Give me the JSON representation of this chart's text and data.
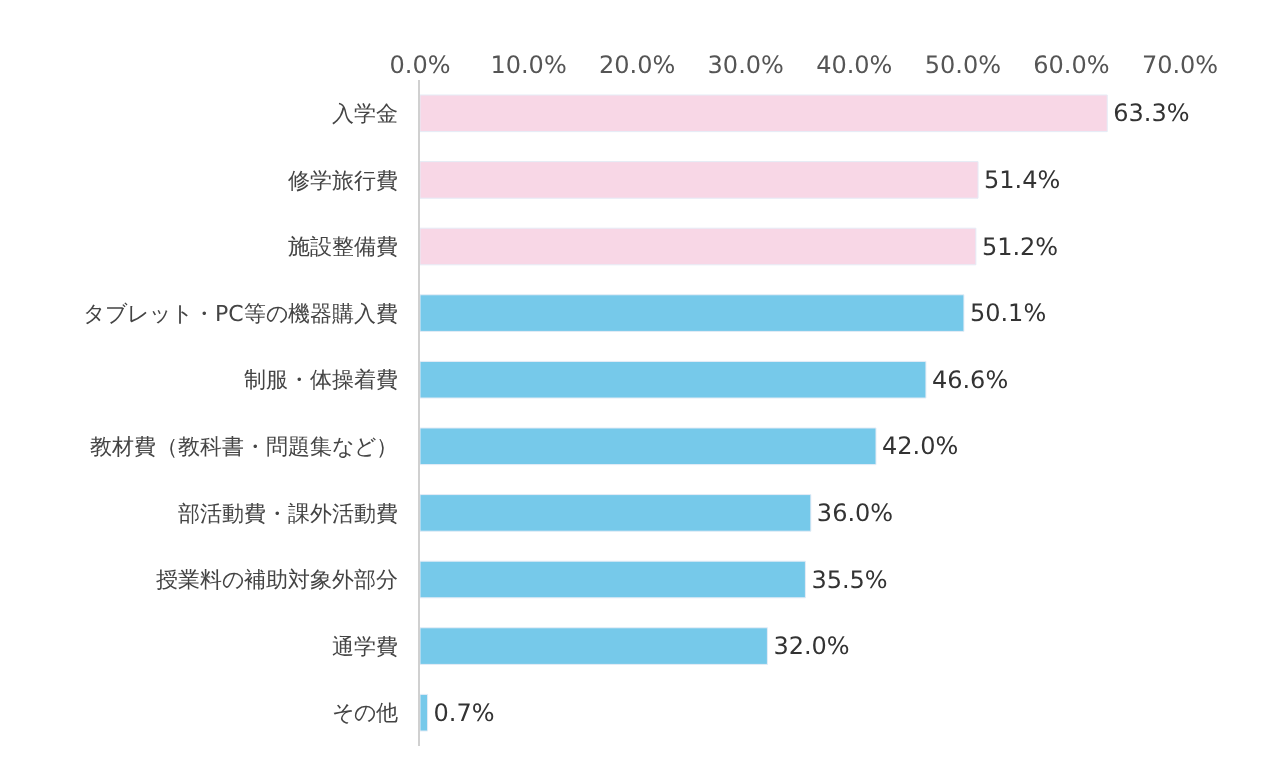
{
  "chart_data": {
    "type": "bar",
    "orientation": "horizontal",
    "categories": [
      "入学金",
      "修学旅行費",
      "施設整備費",
      "タブレット・PC等の機器購入費",
      "制服・体操着費",
      "教材費（教科書・問題集など）",
      "部活動費・課外活動費",
      "授業料の補助対象外部分",
      "通学費",
      "その他"
    ],
    "values": [
      63.3,
      51.4,
      51.2,
      50.1,
      46.6,
      42.0,
      36.0,
      35.5,
      32.0,
      0.7
    ],
    "colors": [
      "#f8d7e6",
      "#f8d7e6",
      "#f8d7e6",
      "#76c9ea",
      "#76c9ea",
      "#76c9ea",
      "#76c9ea",
      "#76c9ea",
      "#76c9ea",
      "#76c9ea"
    ],
    "value_labels": [
      "63.3%",
      "51.4%",
      "51.2%",
      "50.1%",
      "46.6%",
      "42.0%",
      "36.0%",
      "35.5%",
      "32.0%",
      "0.7%"
    ],
    "xlim": [
      0,
      70
    ],
    "xticks": [
      {
        "value": 0,
        "label": "0.0%"
      },
      {
        "value": 10,
        "label": "10.0%"
      },
      {
        "value": 20,
        "label": "20.0%"
      },
      {
        "value": 30,
        "label": "30.0%"
      },
      {
        "value": 40,
        "label": "40.0%"
      },
      {
        "value": 50,
        "label": "50.0%"
      },
      {
        "value": 60,
        "label": "60.0%"
      },
      {
        "value": 70,
        "label": "70.0%"
      }
    ]
  }
}
